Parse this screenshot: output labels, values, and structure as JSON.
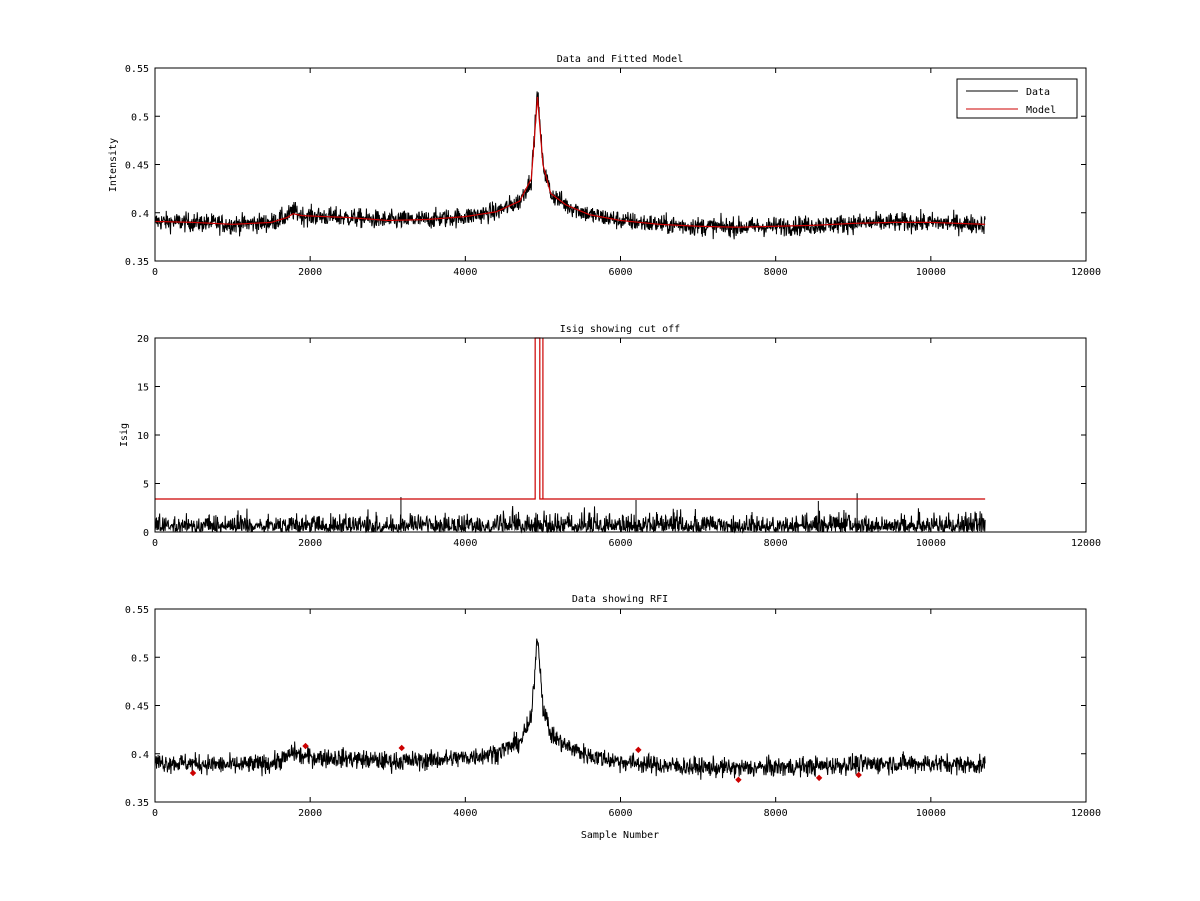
{
  "chart_data": [
    {
      "type": "line",
      "title": "Data and Fitted Model",
      "xlabel": "",
      "ylabel": "Intensity",
      "xlim": [
        0,
        12000
      ],
      "ylim": [
        0.35,
        0.55
      ],
      "xticks": [
        0,
        2000,
        4000,
        6000,
        8000,
        10000,
        12000
      ],
      "xtick_labels": [
        "0",
        "2000",
        "4000",
        "6000",
        "8000",
        "10000",
        "12000"
      ],
      "yticks": [
        0.35,
        0.4,
        0.45,
        0.5,
        0.55
      ],
      "ytick_labels": [
        "0.35",
        "0.4",
        "0.45",
        "0.5",
        "0.55"
      ],
      "legend_position": "top-right",
      "series": [
        {
          "name": "Data",
          "color": "#000000",
          "kind": "noisy",
          "noise": 0.005,
          "x": [
            0,
            500,
            1000,
            1500,
            1700,
            1780,
            1900,
            2500,
            3000,
            3500,
            4000,
            4400,
            4700,
            4850,
            4930,
            5000,
            5100,
            5300,
            5600,
            6000,
            6500,
            7000,
            7500,
            8000,
            8500,
            9000,
            9500,
            10000,
            10700
          ],
          "y": [
            0.391,
            0.39,
            0.388,
            0.39,
            0.396,
            0.402,
            0.397,
            0.395,
            0.392,
            0.393,
            0.396,
            0.401,
            0.412,
            0.435,
            0.525,
            0.45,
            0.42,
            0.408,
            0.398,
            0.392,
            0.388,
            0.386,
            0.385,
            0.386,
            0.387,
            0.389,
            0.39,
            0.39,
            0.388
          ]
        },
        {
          "name": "Model",
          "color": "#cc0000",
          "kind": "smooth",
          "x": [
            0,
            500,
            1000,
            1500,
            1700,
            1780,
            1900,
            2500,
            3000,
            3500,
            4000,
            4400,
            4700,
            4850,
            4930,
            5000,
            5100,
            5300,
            5600,
            6000,
            6500,
            7000,
            7500,
            8000,
            8500,
            9000,
            9500,
            10000,
            10700
          ],
          "y": [
            0.391,
            0.39,
            0.388,
            0.39,
            0.395,
            0.399,
            0.397,
            0.395,
            0.392,
            0.393,
            0.396,
            0.401,
            0.412,
            0.435,
            0.52,
            0.45,
            0.42,
            0.408,
            0.398,
            0.392,
            0.388,
            0.386,
            0.385,
            0.386,
            0.387,
            0.389,
            0.39,
            0.39,
            0.388
          ]
        }
      ]
    },
    {
      "type": "line",
      "title": "Isig showing cut off",
      "xlabel": "",
      "ylabel": "Isig",
      "xlim": [
        0,
        12000
      ],
      "ylim": [
        0,
        20
      ],
      "xticks": [
        0,
        2000,
        4000,
        6000,
        8000,
        10000,
        12000
      ],
      "xtick_labels": [
        "0",
        "2000",
        "4000",
        "6000",
        "8000",
        "10000",
        "12000"
      ],
      "yticks": [
        0,
        5,
        10,
        15,
        20
      ],
      "ytick_labels": [
        "0",
        "5",
        "10",
        "15",
        "20"
      ],
      "series": [
        {
          "color": "#000000",
          "kind": "abs-noise",
          "x_range": [
            0,
            10700
          ],
          "scale": 0.9,
          "max": 3.1,
          "spikes": [
            {
              "x": 3170,
              "y": 3.6
            },
            {
              "x": 9050,
              "y": 4.0
            },
            {
              "x": 6200,
              "y": 3.3
            },
            {
              "x": 8550,
              "y": 3.2
            }
          ]
        },
        {
          "color": "#cc0000",
          "kind": "step",
          "x": [
            0,
            4900,
            4900,
            4960,
            4960,
            5000,
            5000,
            10700
          ],
          "y": [
            3.4,
            3.4,
            20,
            20,
            3.4,
            3.4,
            3.4,
            3.4
          ],
          "clip_top": true,
          "vertical_lines": [
            4900,
            4960,
            5000,
            5000
          ]
        }
      ]
    },
    {
      "type": "line",
      "title": "Data showing RFI",
      "xlabel": "Sample Number",
      "ylabel": "",
      "xlim": [
        0,
        12000
      ],
      "ylim": [
        0.35,
        0.55
      ],
      "xticks": [
        0,
        2000,
        4000,
        6000,
        8000,
        10000,
        12000
      ],
      "xtick_labels": [
        "0",
        "2000",
        "4000",
        "6000",
        "8000",
        "10000",
        "12000"
      ],
      "yticks": [
        0.35,
        0.4,
        0.45,
        0.5,
        0.55
      ],
      "ytick_labels": [
        "0.35",
        "0.4",
        "0.45",
        "0.5",
        "0.55"
      ],
      "series": [
        {
          "color": "#000000",
          "kind": "noisy",
          "noise": 0.005,
          "x": [
            0,
            500,
            1000,
            1500,
            1700,
            1780,
            1900,
            2500,
            3000,
            3500,
            4000,
            4400,
            4700,
            4850,
            4930,
            5000,
            5100,
            5300,
            5600,
            6000,
            6500,
            7000,
            7500,
            8000,
            8500,
            9000,
            9500,
            10000,
            10700
          ],
          "y": [
            0.391,
            0.39,
            0.388,
            0.39,
            0.396,
            0.402,
            0.397,
            0.395,
            0.392,
            0.393,
            0.396,
            0.401,
            0.412,
            0.435,
            0.525,
            0.45,
            0.42,
            0.408,
            0.398,
            0.392,
            0.388,
            0.386,
            0.385,
            0.386,
            0.387,
            0.389,
            0.39,
            0.39,
            0.388
          ]
        },
        {
          "color": "#cc0000",
          "kind": "markers",
          "points": [
            [
              490,
              0.38
            ],
            [
              1940,
              0.408
            ],
            [
              3180,
              0.406
            ],
            [
              6230,
              0.404
            ],
            [
              7520,
              0.373
            ],
            [
              8560,
              0.375
            ],
            [
              9070,
              0.378
            ]
          ]
        }
      ]
    }
  ]
}
